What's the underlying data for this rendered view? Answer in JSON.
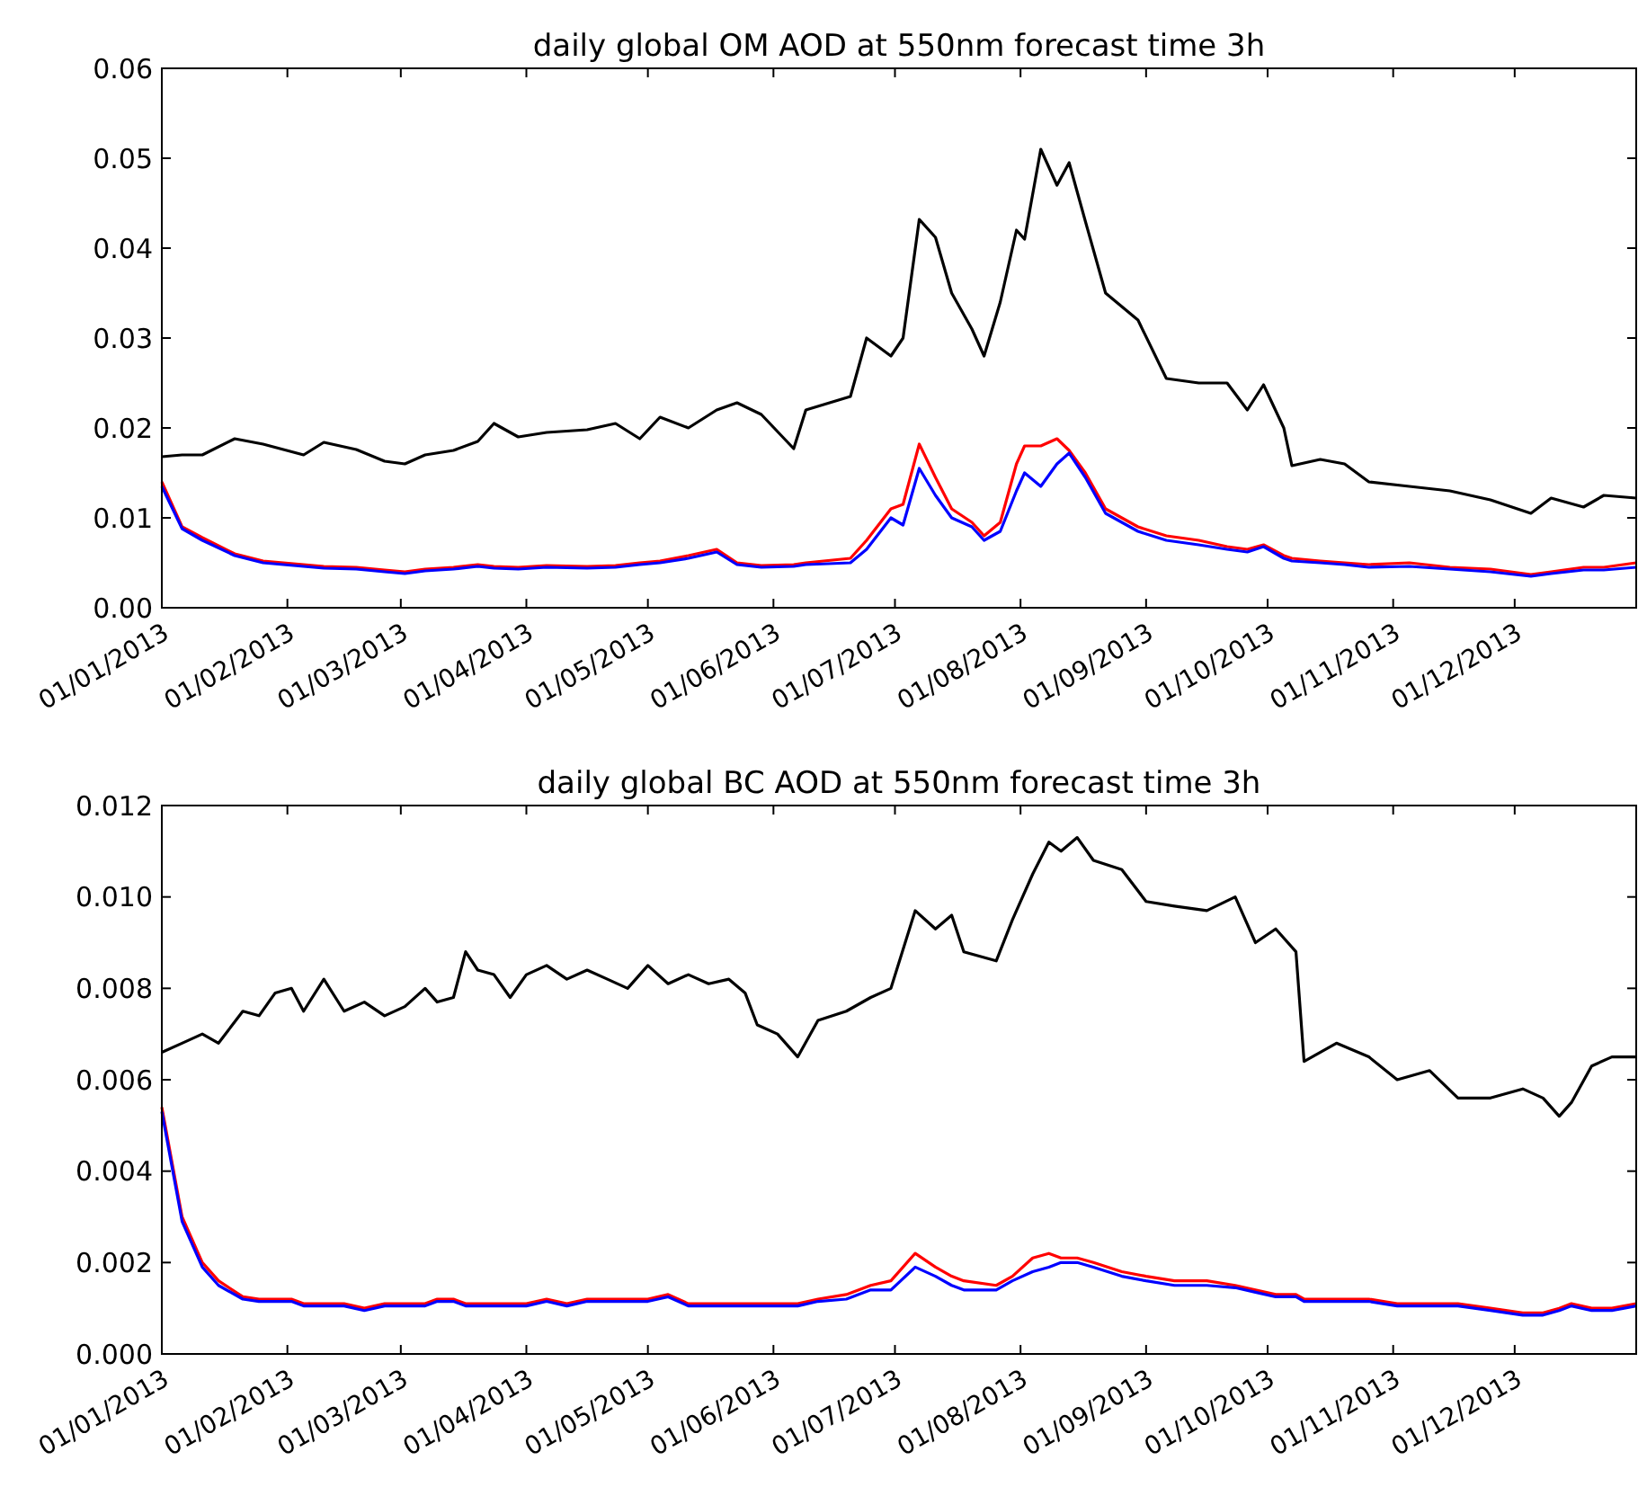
{
  "chart_data": [
    {
      "type": "line",
      "title": "daily global OM AOD at 550nm forecast time 3h",
      "grid": false,
      "line_style": "solid",
      "xlim": [
        "2013-01-01",
        "2013-12-31"
      ],
      "xticks": [
        {
          "value": "2013-01-01",
          "label": "01/01/2013"
        },
        {
          "value": "2013-02-01",
          "label": "01/02/2013"
        },
        {
          "value": "2013-03-01",
          "label": "01/03/2013"
        },
        {
          "value": "2013-04-01",
          "label": "01/04/2013"
        },
        {
          "value": "2013-05-01",
          "label": "01/05/2013"
        },
        {
          "value": "2013-06-01",
          "label": "01/06/2013"
        },
        {
          "value": "2013-07-01",
          "label": "01/07/2013"
        },
        {
          "value": "2013-08-01",
          "label": "01/08/2013"
        },
        {
          "value": "2013-09-01",
          "label": "01/09/2013"
        },
        {
          "value": "2013-10-01",
          "label": "01/10/2013"
        },
        {
          "value": "2013-11-01",
          "label": "01/11/2013"
        },
        {
          "value": "2013-12-01",
          "label": "01/12/2013"
        }
      ],
      "ylim": [
        0,
        0.06
      ],
      "yticks": [
        {
          "value": 0,
          "label": "0.00"
        },
        {
          "value": 0.01,
          "label": "0.01"
        },
        {
          "value": 0.02,
          "label": "0.02"
        },
        {
          "value": 0.03,
          "label": "0.03"
        },
        {
          "value": 0.04,
          "label": "0.04"
        },
        {
          "value": 0.05,
          "label": "0.05"
        },
        {
          "value": 0.06,
          "label": "0.06"
        }
      ],
      "x": [
        "2013-01-01",
        "2013-01-06",
        "2013-01-11",
        "2013-01-19",
        "2013-01-26",
        "2013-02-05",
        "2013-02-10",
        "2013-02-18",
        "2013-02-25",
        "2013-03-02",
        "2013-03-07",
        "2013-03-14",
        "2013-03-20",
        "2013-03-24",
        "2013-03-30",
        "2013-04-06",
        "2013-04-16",
        "2013-04-23",
        "2013-04-29",
        "2013-05-04",
        "2013-05-11",
        "2013-05-18",
        "2013-05-23",
        "2013-05-29",
        "2013-06-06",
        "2013-06-09",
        "2013-06-20",
        "2013-06-24",
        "2013-06-30",
        "2013-07-03",
        "2013-07-07",
        "2013-07-11",
        "2013-07-15",
        "2013-07-20",
        "2013-07-23",
        "2013-07-27",
        "2013-07-31",
        "2013-08-02",
        "2013-08-06",
        "2013-08-10",
        "2013-08-13",
        "2013-08-17",
        "2013-08-22",
        "2013-08-30",
        "2013-09-06",
        "2013-09-14",
        "2013-09-21",
        "2013-09-26",
        "2013-09-30",
        "2013-10-05",
        "2013-10-07",
        "2013-10-14",
        "2013-10-20",
        "2013-10-26",
        "2013-11-05",
        "2013-11-15",
        "2013-11-25",
        "2013-12-05",
        "2013-12-10",
        "2013-12-18",
        "2013-12-23",
        "2013-12-31"
      ],
      "series": [
        {
          "color": "#000000",
          "values": [
            0.0168,
            0.017,
            0.017,
            0.0188,
            0.0182,
            0.017,
            0.0184,
            0.0176,
            0.0163,
            0.016,
            0.017,
            0.0175,
            0.0185,
            0.0205,
            0.019,
            0.0195,
            0.0198,
            0.0205,
            0.0188,
            0.0212,
            0.02,
            0.022,
            0.0228,
            0.0215,
            0.0177,
            0.022,
            0.0235,
            0.03,
            0.028,
            0.03,
            0.0432,
            0.0412,
            0.035,
            0.031,
            0.028,
            0.034,
            0.042,
            0.041,
            0.051,
            0.047,
            0.0495,
            0.043,
            0.035,
            0.032,
            0.0255,
            0.025,
            0.025,
            0.022,
            0.0248,
            0.02,
            0.0158,
            0.0165,
            0.016,
            0.014,
            0.0135,
            0.013,
            0.012,
            0.0105,
            0.0122,
            0.0112,
            0.0125,
            0.0122
          ]
        },
        {
          "color": "#ff0000",
          "values": [
            0.014,
            0.009,
            0.0078,
            0.006,
            0.0052,
            0.0048,
            0.0046,
            0.0045,
            0.0042,
            0.004,
            0.0043,
            0.0045,
            0.0048,
            0.0046,
            0.0045,
            0.0047,
            0.0046,
            0.0047,
            0.005,
            0.0052,
            0.0058,
            0.0065,
            0.005,
            0.0047,
            0.0048,
            0.005,
            0.0055,
            0.0075,
            0.011,
            0.0115,
            0.0182,
            0.0145,
            0.011,
            0.0095,
            0.008,
            0.0095,
            0.016,
            0.018,
            0.018,
            0.0188,
            0.0175,
            0.015,
            0.011,
            0.009,
            0.008,
            0.0075,
            0.0068,
            0.0065,
            0.007,
            0.0058,
            0.0055,
            0.0052,
            0.005,
            0.0048,
            0.005,
            0.0045,
            0.0043,
            0.0037,
            0.004,
            0.0045,
            0.0045,
            0.005
          ]
        },
        {
          "color": "#0000ff",
          "values": [
            0.0135,
            0.0088,
            0.0075,
            0.0058,
            0.005,
            0.0046,
            0.0044,
            0.0043,
            0.004,
            0.0038,
            0.0041,
            0.0043,
            0.0046,
            0.0044,
            0.0043,
            0.0045,
            0.0044,
            0.0045,
            0.0048,
            0.005,
            0.0055,
            0.0062,
            0.0048,
            0.0045,
            0.0046,
            0.0048,
            0.005,
            0.0065,
            0.01,
            0.0092,
            0.0155,
            0.0125,
            0.01,
            0.009,
            0.0075,
            0.0085,
            0.013,
            0.015,
            0.0135,
            0.016,
            0.0172,
            0.0145,
            0.0105,
            0.0085,
            0.0075,
            0.007,
            0.0065,
            0.0062,
            0.0068,
            0.0055,
            0.0052,
            0.005,
            0.0048,
            0.0045,
            0.0046,
            0.0043,
            0.004,
            0.0035,
            0.0038,
            0.0042,
            0.0042,
            0.0045
          ]
        }
      ]
    },
    {
      "type": "line",
      "title": "daily global BC AOD at 550nm forecast time 3h",
      "grid": false,
      "line_style": "solid",
      "xlim": [
        "2013-01-01",
        "2013-12-31"
      ],
      "xticks": [
        {
          "value": "2013-01-01",
          "label": "01/01/2013"
        },
        {
          "value": "2013-02-01",
          "label": "01/02/2013"
        },
        {
          "value": "2013-03-01",
          "label": "01/03/2013"
        },
        {
          "value": "2013-04-01",
          "label": "01/04/2013"
        },
        {
          "value": "2013-05-01",
          "label": "01/05/2013"
        },
        {
          "value": "2013-06-01",
          "label": "01/06/2013"
        },
        {
          "value": "2013-07-01",
          "label": "01/07/2013"
        },
        {
          "value": "2013-08-01",
          "label": "01/08/2013"
        },
        {
          "value": "2013-09-01",
          "label": "01/09/2013"
        },
        {
          "value": "2013-10-01",
          "label": "01/10/2013"
        },
        {
          "value": "2013-11-01",
          "label": "01/11/2013"
        },
        {
          "value": "2013-12-01",
          "label": "01/12/2013"
        }
      ],
      "ylim": [
        0,
        0.012
      ],
      "yticks": [
        {
          "value": 0,
          "label": "0.000"
        },
        {
          "value": 0.002,
          "label": "0.002"
        },
        {
          "value": 0.004,
          "label": "0.004"
        },
        {
          "value": 0.006,
          "label": "0.006"
        },
        {
          "value": 0.008,
          "label": "0.008"
        },
        {
          "value": 0.01,
          "label": "0.010"
        },
        {
          "value": 0.012,
          "label": "0.012"
        }
      ],
      "x": [
        "2013-01-01",
        "2013-01-06",
        "2013-01-11",
        "2013-01-15",
        "2013-01-21",
        "2013-01-25",
        "2013-01-29",
        "2013-02-02",
        "2013-02-05",
        "2013-02-10",
        "2013-02-15",
        "2013-02-20",
        "2013-02-25",
        "2013-03-02",
        "2013-03-07",
        "2013-03-10",
        "2013-03-14",
        "2013-03-17",
        "2013-03-20",
        "2013-03-24",
        "2013-03-28",
        "2013-04-01",
        "2013-04-06",
        "2013-04-11",
        "2013-04-16",
        "2013-04-21",
        "2013-04-26",
        "2013-05-01",
        "2013-05-06",
        "2013-05-11",
        "2013-05-16",
        "2013-05-21",
        "2013-05-25",
        "2013-05-28",
        "2013-06-02",
        "2013-06-07",
        "2013-06-12",
        "2013-06-19",
        "2013-06-25",
        "2013-06-30",
        "2013-07-06",
        "2013-07-11",
        "2013-07-15",
        "2013-07-18",
        "2013-07-26",
        "2013-07-30",
        "2013-08-04",
        "2013-08-08",
        "2013-08-11",
        "2013-08-15",
        "2013-08-19",
        "2013-08-26",
        "2013-09-01",
        "2013-09-08",
        "2013-09-16",
        "2013-09-23",
        "2013-09-28",
        "2013-10-03",
        "2013-10-08",
        "2013-10-10",
        "2013-10-18",
        "2013-10-26",
        "2013-11-02",
        "2013-11-10",
        "2013-11-17",
        "2013-11-25",
        "2013-12-03",
        "2013-12-08",
        "2013-12-12",
        "2013-12-15",
        "2013-12-20",
        "2013-12-25",
        "2013-12-31"
      ],
      "series": [
        {
          "color": "#000000",
          "values": [
            0.0066,
            0.0068,
            0.007,
            0.0068,
            0.0075,
            0.0074,
            0.0079,
            0.008,
            0.0075,
            0.0082,
            0.0075,
            0.0077,
            0.0074,
            0.0076,
            0.008,
            0.0077,
            0.0078,
            0.0088,
            0.0084,
            0.0083,
            0.0078,
            0.0083,
            0.0085,
            0.0082,
            0.0084,
            0.0082,
            0.008,
            0.0085,
            0.0081,
            0.0083,
            0.0081,
            0.0082,
            0.0079,
            0.0072,
            0.007,
            0.0065,
            0.0073,
            0.0075,
            0.0078,
            0.008,
            0.0097,
            0.0093,
            0.0096,
            0.0088,
            0.0086,
            0.0095,
            0.0105,
            0.0112,
            0.011,
            0.0113,
            0.0108,
            0.0106,
            0.0099,
            0.0098,
            0.0097,
            0.01,
            0.009,
            0.0093,
            0.0088,
            0.0064,
            0.0068,
            0.0065,
            0.006,
            0.0062,
            0.0056,
            0.0056,
            0.0058,
            0.0056,
            0.0052,
            0.0055,
            0.0063,
            0.0065,
            0.0065
          ]
        },
        {
          "color": "#ff0000",
          "values": [
            0.0054,
            0.003,
            0.002,
            0.0016,
            0.00125,
            0.0012,
            0.0012,
            0.0012,
            0.0011,
            0.0011,
            0.0011,
            0.001,
            0.0011,
            0.0011,
            0.0011,
            0.0012,
            0.0012,
            0.0011,
            0.0011,
            0.0011,
            0.0011,
            0.0011,
            0.0012,
            0.0011,
            0.0012,
            0.0012,
            0.0012,
            0.0012,
            0.0013,
            0.0011,
            0.0011,
            0.0011,
            0.0011,
            0.0011,
            0.0011,
            0.0011,
            0.0012,
            0.0013,
            0.0015,
            0.0016,
            0.0022,
            0.0019,
            0.0017,
            0.0016,
            0.0015,
            0.0017,
            0.0021,
            0.0022,
            0.0021,
            0.0021,
            0.002,
            0.0018,
            0.0017,
            0.0016,
            0.0016,
            0.0015,
            0.0014,
            0.0013,
            0.0013,
            0.0012,
            0.0012,
            0.0012,
            0.0011,
            0.0011,
            0.0011,
            0.001,
            0.0009,
            0.0009,
            0.001,
            0.0011,
            0.001,
            0.001,
            0.0011
          ]
        },
        {
          "color": "#0000ff",
          "values": [
            0.0053,
            0.0029,
            0.0019,
            0.0015,
            0.0012,
            0.00115,
            0.00115,
            0.00115,
            0.00105,
            0.00105,
            0.00105,
            0.00095,
            0.00105,
            0.00105,
            0.00105,
            0.00115,
            0.00115,
            0.00105,
            0.00105,
            0.00105,
            0.00105,
            0.00105,
            0.00115,
            0.00105,
            0.00115,
            0.00115,
            0.00115,
            0.00115,
            0.00125,
            0.00105,
            0.00105,
            0.00105,
            0.00105,
            0.00105,
            0.00105,
            0.00105,
            0.00115,
            0.0012,
            0.0014,
            0.0014,
            0.0019,
            0.0017,
            0.0015,
            0.0014,
            0.0014,
            0.0016,
            0.0018,
            0.0019,
            0.002,
            0.002,
            0.0019,
            0.0017,
            0.0016,
            0.0015,
            0.0015,
            0.00145,
            0.00135,
            0.00125,
            0.00125,
            0.00115,
            0.00115,
            0.00115,
            0.00105,
            0.00105,
            0.00105,
            0.00095,
            0.00085,
            0.00085,
            0.00095,
            0.00105,
            0.00095,
            0.00095,
            0.00105
          ]
        }
      ]
    }
  ]
}
